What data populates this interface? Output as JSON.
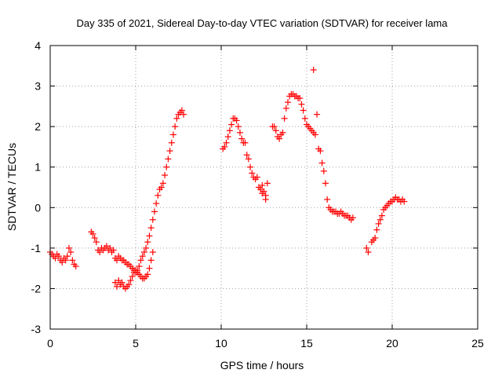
{
  "chart_data": {
    "type": "scatter",
    "title": "Day 335 of 2021, Sidereal Day-to-day VTEC variation (SDTVAR) for receiver lama",
    "xlabel": "GPS time / hours",
    "ylabel": "SDTVAR / TECUs",
    "xlim": [
      0,
      25
    ],
    "ylim": [
      -3,
      4
    ],
    "xticks": [
      "0",
      "5",
      "10",
      "15",
      "20",
      "25"
    ],
    "yticks": [
      "-3",
      "-2",
      "-1",
      "0",
      "1",
      "2",
      "3",
      "4"
    ],
    "grid": true,
    "marker": "+",
    "marker_color": "#ff0000",
    "series": [
      {
        "x": [
          0.0,
          0.1,
          0.2,
          0.3,
          0.4,
          0.5,
          0.6,
          0.7,
          0.8,
          0.9,
          1.0,
          1.1,
          1.2,
          1.3,
          1.4,
          1.5,
          2.4,
          2.5,
          2.6,
          2.7,
          2.8,
          2.9,
          3.0,
          3.1,
          3.2,
          3.3,
          3.4,
          3.5,
          3.6,
          3.7,
          3.8,
          3.9,
          4.0,
          4.1,
          4.2,
          4.3,
          4.4,
          4.5,
          4.6,
          4.7,
          4.8,
          4.9,
          5.0,
          5.1,
          5.2,
          5.3,
          5.4,
          5.5,
          5.6,
          5.7,
          5.8,
          5.9,
          6.0,
          6.1,
          6.2,
          6.3,
          6.4,
          6.5,
          6.6,
          6.7,
          6.8,
          6.9,
          7.0,
          7.1,
          7.2,
          7.3,
          7.4,
          7.5,
          7.6,
          7.7,
          7.8,
          3.8,
          3.9,
          4.0,
          4.1,
          4.2,
          4.3,
          4.4,
          4.5,
          4.6,
          4.7,
          4.8,
          4.9,
          5.0,
          5.1,
          5.2,
          5.3,
          5.4,
          5.5,
          5.6,
          5.7,
          5.8,
          5.9,
          6.0,
          10.1,
          10.2,
          10.3,
          10.4,
          10.5,
          10.6,
          10.7,
          10.8,
          10.9,
          11.0,
          11.1,
          11.2,
          11.3,
          11.4,
          11.5,
          11.6,
          11.7,
          11.8,
          11.9,
          12.0,
          12.1,
          12.2,
          12.3,
          12.4,
          12.5,
          12.6,
          12.7,
          12.4,
          12.6,
          13.0,
          13.1,
          13.2,
          13.3,
          13.4,
          13.5,
          13.6,
          13.7,
          13.8,
          13.9,
          14.0,
          14.1,
          14.2,
          14.3,
          14.4,
          14.5,
          14.6,
          14.7,
          14.8,
          14.9,
          15.0,
          15.1,
          15.2,
          15.3,
          15.4,
          15.5,
          15.4,
          15.6,
          15.7,
          15.8,
          15.9,
          16.0,
          16.1,
          16.2,
          16.3,
          16.4,
          16.5,
          16.6,
          16.7,
          16.8,
          16.9,
          17.0,
          17.1,
          17.2,
          17.3,
          17.4,
          17.5,
          17.6,
          17.7,
          18.5,
          18.6,
          18.8,
          18.9,
          19.0,
          19.1,
          19.2,
          19.3,
          19.4,
          19.5,
          19.6,
          19.7,
          19.8,
          19.9,
          20.0,
          20.1,
          20.2,
          20.3,
          20.4,
          20.5,
          20.6,
          20.7
        ],
        "y": [
          -1.1,
          -1.15,
          -1.2,
          -1.25,
          -1.15,
          -1.2,
          -1.3,
          -1.35,
          -1.25,
          -1.3,
          -1.2,
          -1.0,
          -1.1,
          -1.3,
          -1.4,
          -1.45,
          -0.6,
          -0.65,
          -0.75,
          -0.85,
          -1.05,
          -1.1,
          -1.0,
          -1.05,
          -1.0,
          -0.95,
          -1.05,
          -1.0,
          -1.1,
          -1.05,
          -1.25,
          -1.3,
          -1.2,
          -1.25,
          -1.3,
          -1.3,
          -1.35,
          -1.4,
          -1.4,
          -1.45,
          -1.5,
          -1.55,
          -1.6,
          -1.55,
          -1.45,
          -1.3,
          -1.2,
          -1.1,
          -1.0,
          -0.85,
          -0.7,
          -0.5,
          -0.3,
          -0.1,
          0.1,
          0.3,
          0.45,
          0.5,
          0.6,
          0.8,
          1.0,
          1.2,
          1.4,
          1.6,
          1.8,
          2.0,
          2.2,
          2.3,
          2.35,
          2.4,
          2.3,
          -1.85,
          -1.95,
          -1.8,
          -1.9,
          -1.85,
          -1.95,
          -2.0,
          -1.95,
          -1.9,
          -1.8,
          -1.7,
          -1.6,
          -1.55,
          -1.6,
          -1.65,
          -1.7,
          -1.75,
          -1.75,
          -1.7,
          -1.65,
          -1.5,
          -1.3,
          -1.1,
          1.45,
          1.5,
          1.6,
          1.75,
          1.9,
          2.05,
          2.2,
          2.2,
          2.15,
          2.0,
          1.85,
          1.7,
          1.6,
          1.6,
          1.3,
          1.2,
          1.0,
          0.85,
          0.75,
          0.7,
          0.75,
          0.5,
          0.45,
          0.55,
          0.4,
          0.3,
          0.6,
          0.35,
          0.2,
          2.0,
          2.0,
          1.9,
          1.75,
          1.7,
          1.8,
          1.85,
          2.2,
          2.45,
          2.6,
          2.75,
          2.8,
          2.8,
          2.75,
          2.75,
          2.7,
          2.7,
          2.55,
          2.4,
          2.2,
          2.05,
          2.0,
          1.95,
          1.9,
          1.85,
          1.8,
          3.4,
          2.3,
          1.45,
          1.4,
          1.1,
          0.9,
          0.6,
          0.2,
          0.0,
          -0.05,
          -0.1,
          -0.1,
          -0.1,
          -0.15,
          -0.15,
          -0.1,
          -0.15,
          -0.2,
          -0.2,
          -0.2,
          -0.25,
          -0.3,
          -0.25,
          -1.0,
          -1.1,
          -0.85,
          -0.8,
          -0.75,
          -0.55,
          -0.4,
          -0.3,
          -0.2,
          -0.05,
          0.0,
          0.05,
          0.1,
          0.15,
          0.15,
          0.2,
          0.25,
          0.2,
          0.2,
          0.15,
          0.2,
          0.15
        ]
      }
    ]
  }
}
